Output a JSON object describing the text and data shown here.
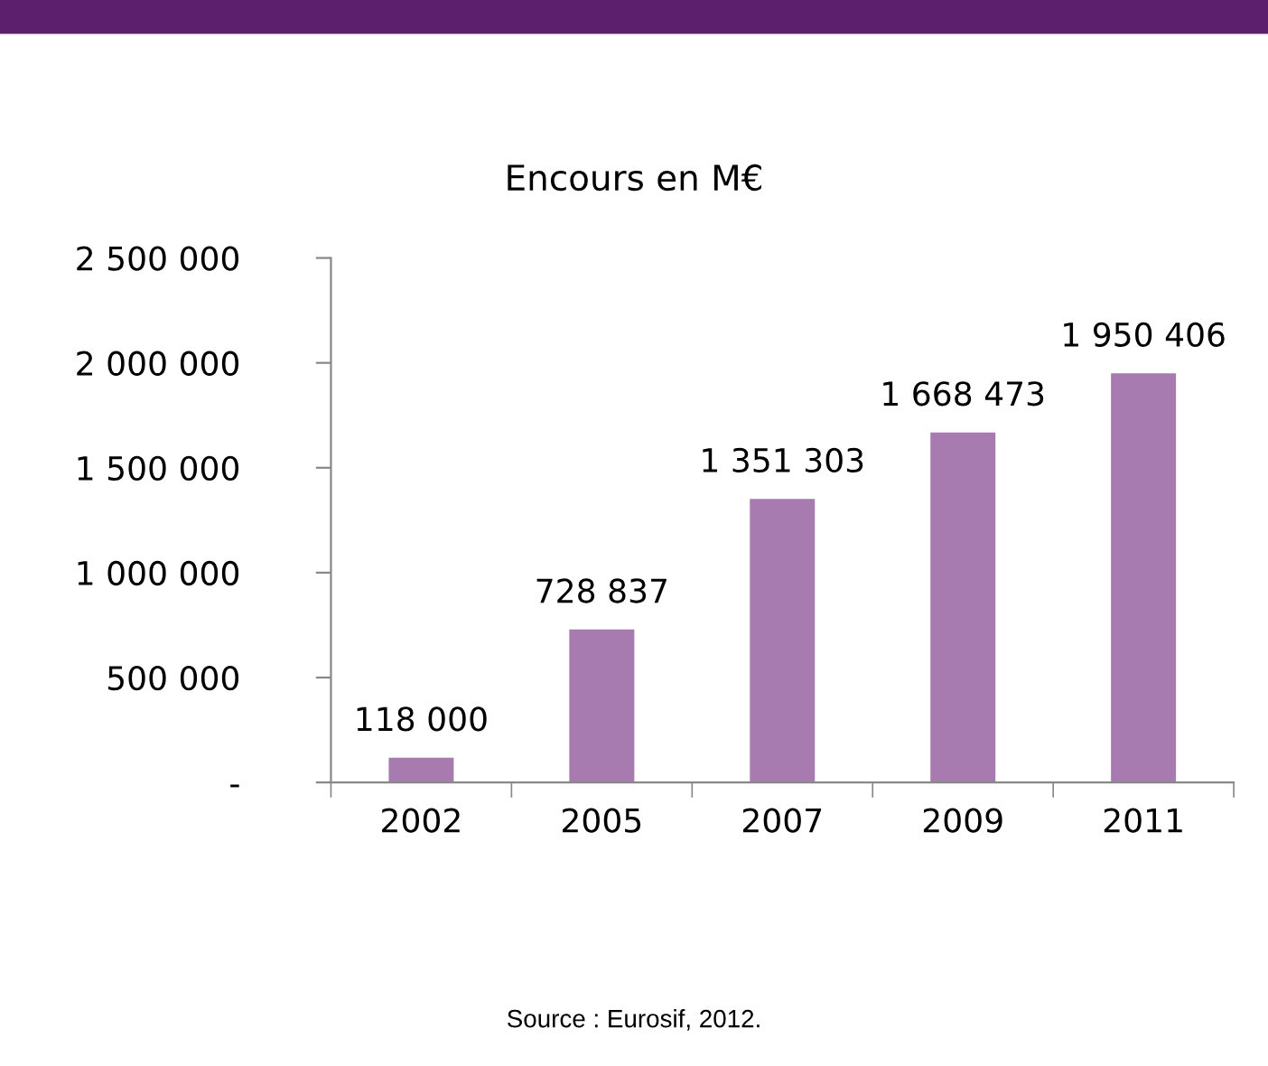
{
  "chart_data": {
    "type": "bar",
    "title": "Encours en M€",
    "categories": [
      "2002",
      "2005",
      "2007",
      "2009",
      "2011"
    ],
    "values": [
      118000,
      728837,
      1351303,
      1668473,
      1950406
    ],
    "value_labels": [
      "118 000",
      "728 837",
      "1 351 303",
      "1 668 473",
      "1 950 406"
    ],
    "color": "#a77ab0",
    "ylim": [
      0,
      2500000
    ],
    "yticks": [
      {
        "value": 0,
        "label": "-"
      },
      {
        "value": 500000,
        "label": "500 000"
      },
      {
        "value": 1000000,
        "label": "1 000 000"
      },
      {
        "value": 1500000,
        "label": "1 500 000"
      },
      {
        "value": 2000000,
        "label": "2 000 000"
      },
      {
        "value": 2500000,
        "label": "2 500 000"
      }
    ],
    "grid": false,
    "legend": false,
    "annotations": [
      "Source : Eurosif, 2012."
    ]
  }
}
